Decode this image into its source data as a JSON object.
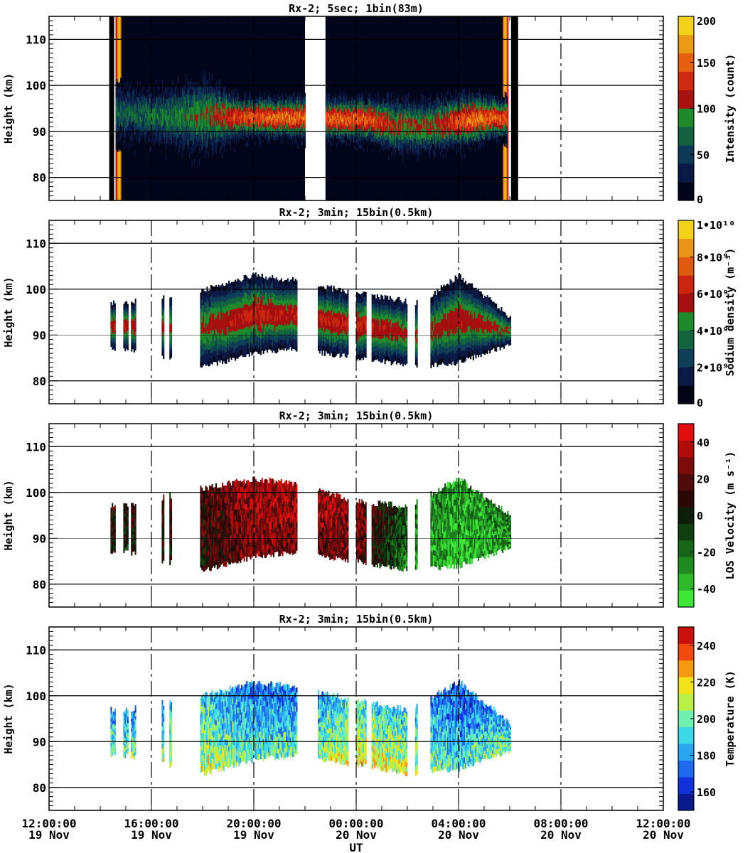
{
  "chart_data": [
    {
      "type": "heatmap",
      "title": "Rx-2;  5sec; 1bin(83m)",
      "ylabel": "Height (km)",
      "ylim": [
        75,
        115
      ],
      "yticks": [
        "80",
        "90",
        "100",
        "110"
      ],
      "colorbar": {
        "label": "Intensity (count)",
        "range": [
          0,
          200
        ],
        "ticks": [
          "0",
          "50",
          "100",
          "150",
          "200"
        ],
        "colors": [
          "#03061a",
          "#0b1a45",
          "#0f3a55",
          "#12603f",
          "#1f8a2c",
          "#aa1212",
          "#d02a10",
          "#e36010",
          "#eb9a18",
          "#f2d21a"
        ]
      },
      "profile": [
        {
          "x": 14.7,
          "lo": 86,
          "hi": 101,
          "level": 65
        },
        {
          "x": 16.5,
          "lo": 84,
          "hi": 101,
          "level": 75
        },
        {
          "x": 18.0,
          "lo": 82,
          "hi": 103,
          "level": 95
        },
        {
          "x": 19.5,
          "lo": 87,
          "hi": 98,
          "level": 140
        },
        {
          "x": 21.0,
          "lo": 87,
          "hi": 98,
          "level": 155
        },
        {
          "x": 24.5,
          "lo": 86,
          "hi": 98,
          "level": 150
        },
        {
          "x": 25.5,
          "lo": 83,
          "hi": 98,
          "level": 110
        },
        {
          "x": 27.0,
          "lo": 83,
          "hi": 98,
          "level": 105
        },
        {
          "x": 28.5,
          "lo": 85,
          "hi": 99,
          "level": 160
        },
        {
          "x": 29.5,
          "lo": 87,
          "hi": 98,
          "level": 150
        }
      ],
      "ranges": [
        [
          14.6,
          22.0
        ],
        [
          22.8,
          29.9
        ]
      ],
      "edges": [
        14.35,
        14.6,
        29.9,
        30.05
      ]
    },
    {
      "type": "heatmap",
      "title": "Rx-2; 3min; 15bin(0.5km)",
      "ylabel": "Height (km)",
      "ylim": [
        75,
        115
      ],
      "yticks": [
        "80",
        "90",
        "100",
        "110"
      ],
      "colorbar": {
        "label": "Sodium density (m⁻³)",
        "range": [
          0,
          10000000000.0
        ],
        "ticks": [
          "0",
          "2•10⁹",
          "4•10⁹",
          "6•10⁹",
          "8•10⁹",
          "1•10¹⁰"
        ],
        "colors": [
          "#020516",
          "#0b1a45",
          "#0f3f56",
          "#12643f",
          "#1f8a2c",
          "#a50f0f",
          "#c82610",
          "#de5a10",
          "#e99318",
          "#f2d21a"
        ]
      },
      "profile": [
        {
          "x": 15.0,
          "lo": 87,
          "hi": 97,
          "level": 0.5
        },
        {
          "x": 18.0,
          "lo": 83,
          "hi": 100,
          "level": 0.45
        },
        {
          "x": 20.0,
          "lo": 86,
          "hi": 103,
          "level": 0.55
        },
        {
          "x": 21.5,
          "lo": 87,
          "hi": 102,
          "level": 0.5
        },
        {
          "x": 24.0,
          "lo": 85,
          "hi": 99,
          "level": 0.55
        },
        {
          "x": 26.5,
          "lo": 83,
          "hi": 97,
          "level": 0.45
        },
        {
          "x": 28.0,
          "lo": 84,
          "hi": 103,
          "level": 0.5
        },
        {
          "x": 30.0,
          "lo": 88,
          "hi": 94,
          "level": 0.45
        }
      ],
      "ranges": [
        [
          14.4,
          14.6
        ],
        [
          14.9,
          15.1
        ],
        [
          15.2,
          15.4
        ],
        [
          16.4,
          16.5
        ],
        [
          16.7,
          16.8
        ],
        [
          17.9,
          21.7
        ],
        [
          22.5,
          23.7
        ],
        [
          24.0,
          24.4
        ],
        [
          24.6,
          26.0
        ],
        [
          26.3,
          26.4
        ],
        [
          26.9,
          30.05
        ]
      ]
    },
    {
      "type": "heatmap",
      "title": "Rx-2; 3min; 15bin(0.5km)",
      "ylabel": "Height (km)",
      "ylim": [
        75,
        115
      ],
      "yticks": [
        "80",
        "90",
        "100",
        "110"
      ],
      "colorbar": {
        "label": "LOS Velocity (m s⁻¹)",
        "range": [
          -50,
          50
        ],
        "ticks": [
          "-40",
          "-20",
          "0",
          "20",
          "40"
        ],
        "colors": [
          "#3ee638",
          "#2fb92c",
          "#208c20",
          "#176518",
          "#103f11",
          "#0d1f0b",
          "#2a0808",
          "#4f0b0b",
          "#7d0b0b",
          "#b00c0c",
          "#e10f0f"
        ]
      },
      "profile": [
        {
          "x": 15.0,
          "lo": 87,
          "hi": 97,
          "level": 0.55
        },
        {
          "x": 18.0,
          "lo": 83,
          "hi": 101,
          "level": 0.6
        },
        {
          "x": 20.0,
          "lo": 86,
          "hi": 103,
          "level": 0.8
        },
        {
          "x": 21.5,
          "lo": 87,
          "hi": 102,
          "level": 0.8
        },
        {
          "x": 24.0,
          "lo": 85,
          "hi": 98,
          "level": 0.75
        },
        {
          "x": 26.0,
          "lo": 83,
          "hi": 97,
          "level": 0.3
        },
        {
          "x": 28.0,
          "lo": 84,
          "hi": 103,
          "level": 0.15
        },
        {
          "x": 30.0,
          "lo": 88,
          "hi": 95,
          "level": 0.25
        }
      ],
      "ranges": [
        [
          14.4,
          14.6
        ],
        [
          14.9,
          15.1
        ],
        [
          15.2,
          15.4
        ],
        [
          16.4,
          16.5
        ],
        [
          16.7,
          16.8
        ],
        [
          17.9,
          21.7
        ],
        [
          22.5,
          23.7
        ],
        [
          24.0,
          24.4
        ],
        [
          24.6,
          26.0
        ],
        [
          26.3,
          26.4
        ],
        [
          26.9,
          30.05
        ]
      ]
    },
    {
      "type": "heatmap",
      "title": "Rx-2; 3min; 15bin(0.5km)",
      "ylabel": "Height (km)",
      "xlabel": "UT",
      "ylim": [
        75,
        115
      ],
      "yticks": [
        "80",
        "90",
        "100",
        "110"
      ],
      "xticks": [
        {
          "time": "12:00:00",
          "date": "19 Nov"
        },
        {
          "time": "16:00:00",
          "date": "19 Nov"
        },
        {
          "time": "20:00:00",
          "date": "19 Nov"
        },
        {
          "time": "00:00:00",
          "date": "20 Nov"
        },
        {
          "time": "04:00:00",
          "date": "20 Nov"
        },
        {
          "time": "08:00:00",
          "date": "20 Nov"
        },
        {
          "time": "12:00:00",
          "date": "20 Nov"
        }
      ],
      "colorbar": {
        "label": "Temperature (K)",
        "range": [
          150,
          250
        ],
        "ticks": [
          "160",
          "180",
          "200",
          "220",
          "240"
        ],
        "colors": [
          "#0a1a8c",
          "#1230d8",
          "#1e6aee",
          "#2aa6f0",
          "#3fd8e8",
          "#6ff0b0",
          "#b8f048",
          "#f2e21a",
          "#f59a10",
          "#f04a10",
          "#c8100c"
        ]
      },
      "profile": [
        {
          "x": 15.0,
          "lo": 87,
          "hi": 97,
          "level": 0.4
        },
        {
          "x": 18.0,
          "lo": 83,
          "hi": 100,
          "level": 0.5
        },
        {
          "x": 20.0,
          "lo": 86,
          "hi": 103,
          "level": 0.35
        },
        {
          "x": 21.5,
          "lo": 87,
          "hi": 102,
          "level": 0.35
        },
        {
          "x": 24.0,
          "lo": 85,
          "hi": 99,
          "level": 0.55
        },
        {
          "x": 26.0,
          "lo": 83,
          "hi": 97,
          "level": 0.5
        },
        {
          "x": 28.0,
          "lo": 84,
          "hi": 103,
          "level": 0.3
        },
        {
          "x": 30.0,
          "lo": 88,
          "hi": 94,
          "level": 0.45
        }
      ],
      "ranges": [
        [
          14.4,
          14.6
        ],
        [
          14.9,
          15.1
        ],
        [
          15.2,
          15.4
        ],
        [
          16.4,
          16.5
        ],
        [
          16.7,
          16.8
        ],
        [
          17.9,
          21.7
        ],
        [
          22.5,
          23.7
        ],
        [
          24.0,
          24.4
        ],
        [
          24.6,
          26.0
        ],
        [
          26.3,
          26.4
        ],
        [
          26.9,
          30.05
        ]
      ]
    }
  ]
}
